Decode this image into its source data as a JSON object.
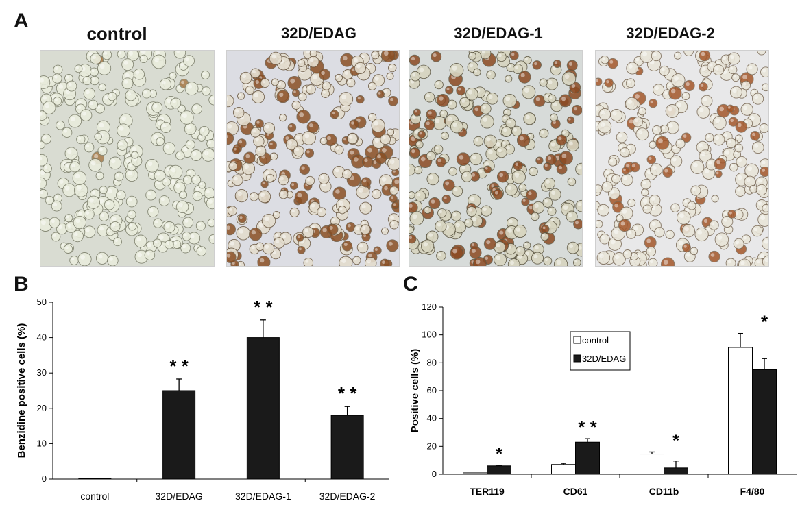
{
  "panels": {
    "a": "A",
    "b": "B",
    "c": "C"
  },
  "images": [
    {
      "title": "control",
      "tone": "#d9dcd2",
      "cell_fill": "#e9ecdc",
      "cell_edge": "#7d7f6c",
      "stain": "#a87b4a",
      "stain_ratio": 0.02
    },
    {
      "title": "32D/EDAG",
      "tone": "#dcdde3",
      "cell_fill": "#e3dccd",
      "cell_edge": "#6c5a44",
      "stain": "#8a4f24",
      "stain_ratio": 0.38
    },
    {
      "title": "32D/EDAG-1",
      "tone": "#d7dbd9",
      "cell_fill": "#d8d5c0",
      "cell_edge": "#5e5844",
      "stain": "#8b4a22",
      "stain_ratio": 0.3
    },
    {
      "title": "32D/EDAG-2",
      "tone": "#e8e8e9",
      "cell_fill": "#e9e5d9",
      "cell_edge": "#7b6b58",
      "stain": "#a3572a",
      "stain_ratio": 0.2
    }
  ],
  "chart_data": [
    {
      "type": "bar",
      "ylabel": "Benzidine positive cells (%)",
      "xlabel": "",
      "ylim": [
        0,
        50
      ],
      "yticks": [
        "0",
        "10",
        "20",
        "30",
        "40",
        "50"
      ],
      "categories": [
        "control",
        "32D/EDAG",
        "32D/EDAG-1",
        "32D/EDAG-2"
      ],
      "series": [
        {
          "values": [
            0.2,
            25,
            40,
            18
          ],
          "errors": [
            0,
            3.3,
            5,
            2.5
          ]
        }
      ],
      "annotations": [
        "",
        "* *",
        "* *",
        "* *"
      ],
      "color": "#1a1a1a"
    },
    {
      "type": "bar",
      "ylabel": "Positive cells (%)",
      "xlabel": "",
      "ylim": [
        0,
        120
      ],
      "yticks": [
        "0",
        "20",
        "40",
        "60",
        "80",
        "100",
        "120"
      ],
      "categories": [
        "TER119",
        "CD61",
        "CD11b",
        "F4/80"
      ],
      "series": [
        {
          "name": "control",
          "values": [
            1,
            7,
            14.5,
            91
          ],
          "errors": [
            0,
            0.8,
            1.5,
            10
          ],
          "color": "#ffffff"
        },
        {
          "name": "32D/EDAG",
          "values": [
            6,
            23,
            4.5,
            75
          ],
          "errors": [
            0.5,
            2.5,
            5,
            8
          ],
          "color": "#1a1a1a"
        }
      ],
      "annotations": [
        "*",
        "* *",
        "*",
        "*"
      ],
      "legend": "upper-center"
    }
  ]
}
